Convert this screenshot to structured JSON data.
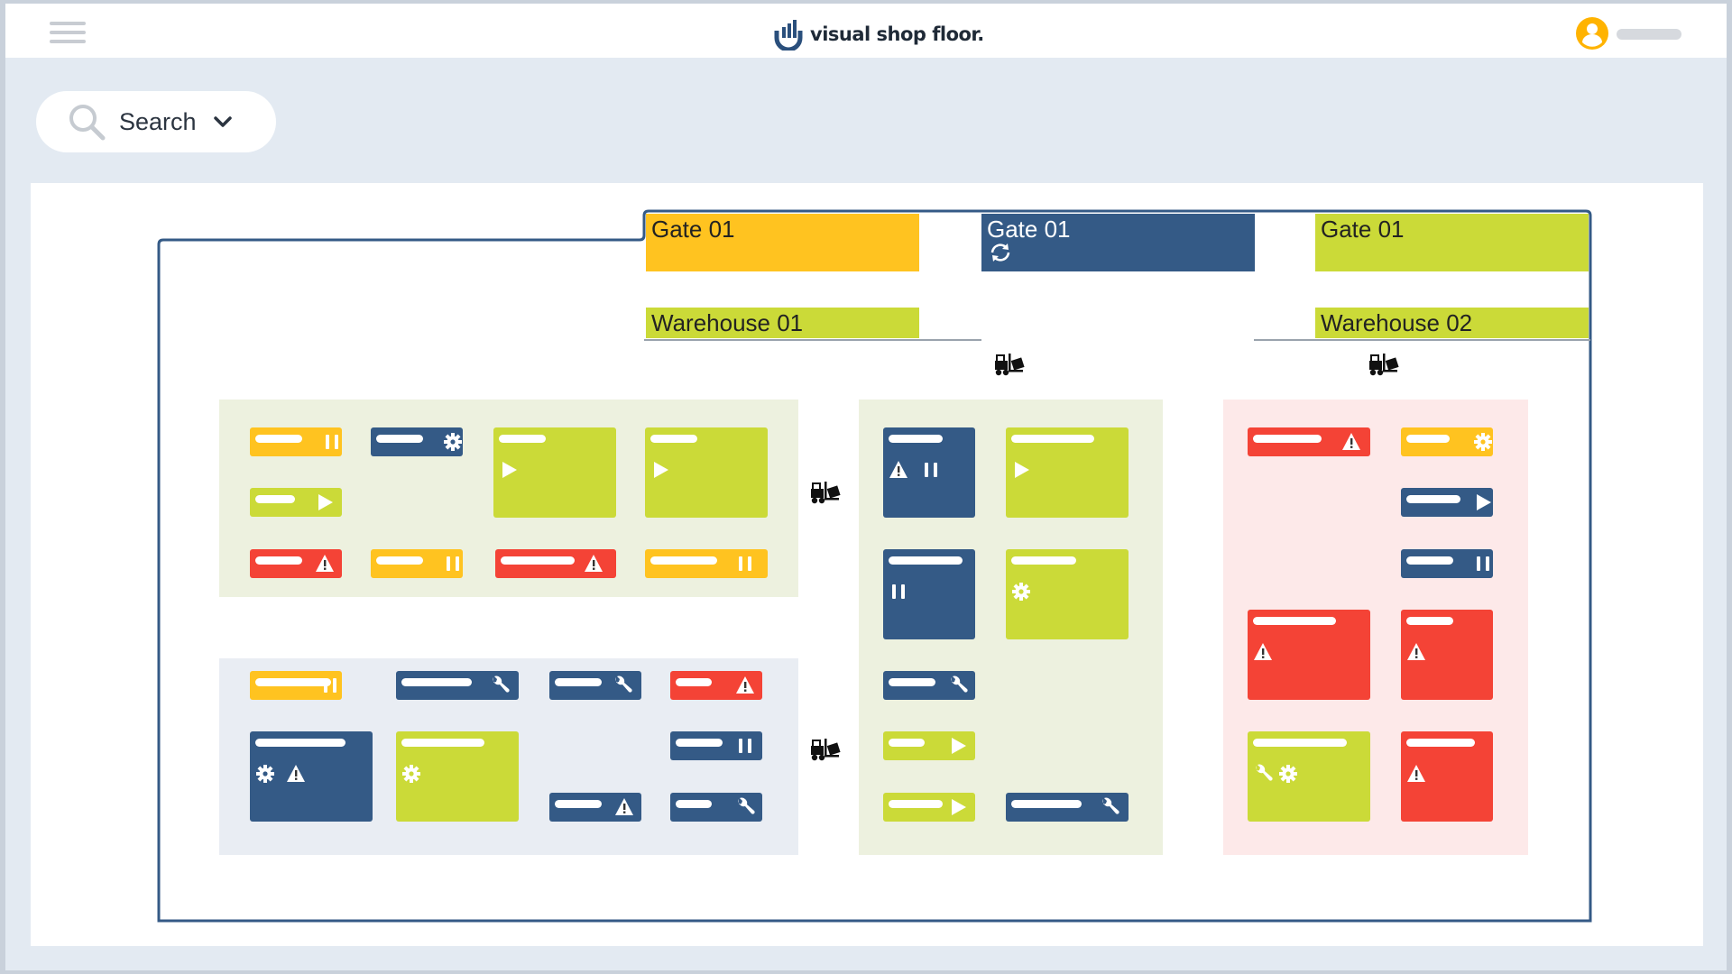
{
  "app": {
    "brand": "visual shop floor.",
    "search_label": "Search"
  },
  "layout": {
    "gates": [
      {
        "label": "Gate 01",
        "color": "#ffc320"
      },
      {
        "label": "Gate 01",
        "color": "#345a86",
        "icon": "sync-icon"
      },
      {
        "label": "Gate 01",
        "color": "#cbda38"
      }
    ],
    "warehouses": [
      {
        "label": "Warehouse 01",
        "color": "#cbda38"
      },
      {
        "label": "Warehouse 02",
        "color": "#cbda38"
      }
    ]
  },
  "colors": {
    "yellow": "#ffc320",
    "blue": "#345a86",
    "green": "#cbda38",
    "red": "#f44336",
    "hall_border": "#345a86"
  }
}
